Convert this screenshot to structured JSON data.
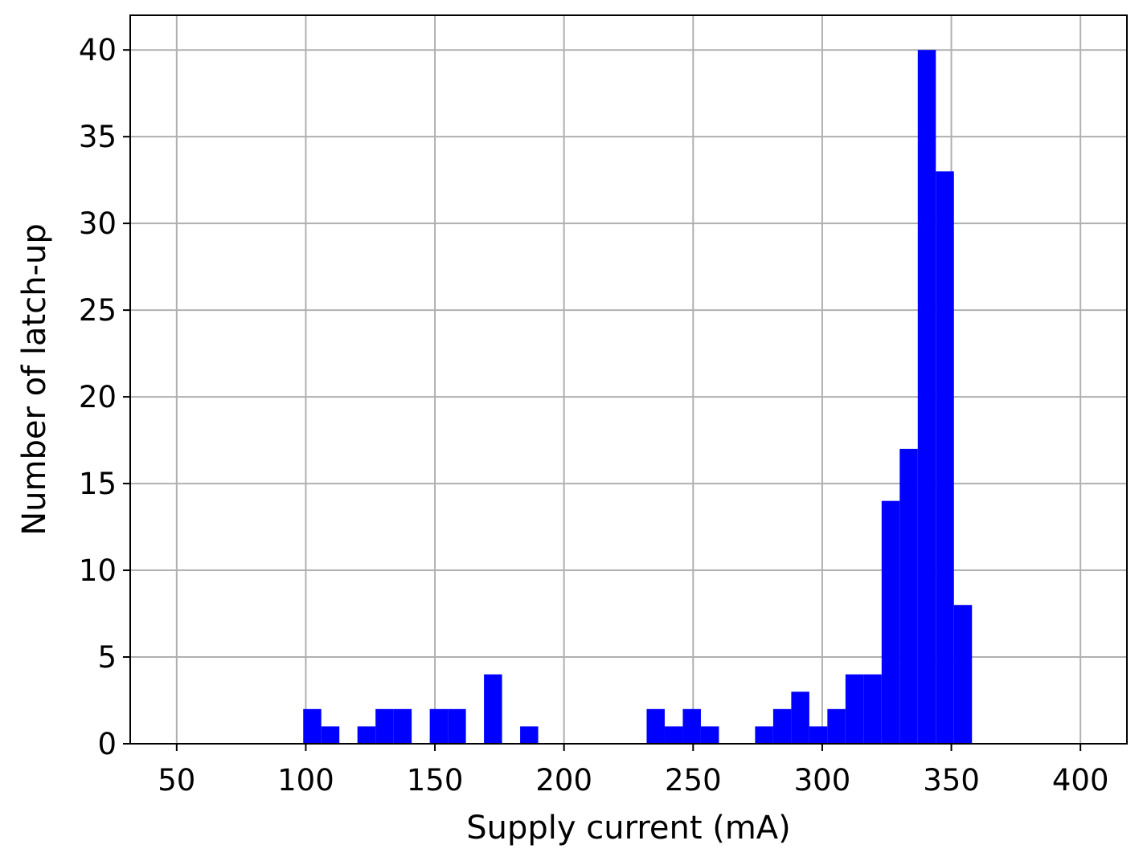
{
  "chart_data": {
    "type": "bar",
    "subtype": "histogram",
    "title": "",
    "xlabel": "Supply current (mA)",
    "ylabel": "Number of latch-up",
    "xlim": [
      32,
      418
    ],
    "ylim": [
      0,
      42
    ],
    "xticks": [
      50,
      100,
      150,
      200,
      250,
      300,
      350,
      400
    ],
    "yticks": [
      0,
      5,
      10,
      15,
      20,
      25,
      30,
      35,
      40
    ],
    "grid": true,
    "color": "#0000ff",
    "bin_width": 7,
    "bins": [
      {
        "x0": 99,
        "x1": 106,
        "count": 2
      },
      {
        "x0": 106,
        "x1": 113,
        "count": 1
      },
      {
        "x0": 120,
        "x1": 127,
        "count": 1
      },
      {
        "x0": 127,
        "x1": 134,
        "count": 2
      },
      {
        "x0": 134,
        "x1": 141,
        "count": 2
      },
      {
        "x0": 148,
        "x1": 155,
        "count": 2
      },
      {
        "x0": 155,
        "x1": 162,
        "count": 2
      },
      {
        "x0": 169,
        "x1": 176,
        "count": 4
      },
      {
        "x0": 183,
        "x1": 190,
        "count": 1
      },
      {
        "x0": 232,
        "x1": 239,
        "count": 2
      },
      {
        "x0": 239,
        "x1": 246,
        "count": 1
      },
      {
        "x0": 246,
        "x1": 253,
        "count": 2
      },
      {
        "x0": 253,
        "x1": 260,
        "count": 1
      },
      {
        "x0": 274,
        "x1": 281,
        "count": 1
      },
      {
        "x0": 281,
        "x1": 288,
        "count": 2
      },
      {
        "x0": 288,
        "x1": 295,
        "count": 3
      },
      {
        "x0": 295,
        "x1": 302,
        "count": 1
      },
      {
        "x0": 302,
        "x1": 309,
        "count": 2
      },
      {
        "x0": 309,
        "x1": 316,
        "count": 4
      },
      {
        "x0": 316,
        "x1": 323,
        "count": 4
      },
      {
        "x0": 323,
        "x1": 330,
        "count": 14
      },
      {
        "x0": 330,
        "x1": 337,
        "count": 17
      },
      {
        "x0": 337,
        "x1": 344,
        "count": 40
      },
      {
        "x0": 344,
        "x1": 351,
        "count": 33
      },
      {
        "x0": 351,
        "x1": 358,
        "count": 8
      }
    ]
  }
}
